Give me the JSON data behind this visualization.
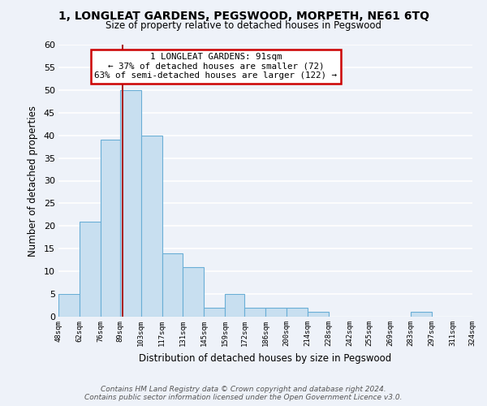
{
  "title": "1, LONGLEAT GARDENS, PEGSWOOD, MORPETH, NE61 6TQ",
  "subtitle": "Size of property relative to detached houses in Pegswood",
  "xlabel": "Distribution of detached houses by size in Pegswood",
  "ylabel": "Number of detached properties",
  "bar_color": "#c8dff0",
  "bar_edge_color": "#6aaed6",
  "bins": [
    48,
    62,
    76,
    89,
    103,
    117,
    131,
    145,
    159,
    172,
    186,
    200,
    214,
    228,
    242,
    255,
    269,
    283,
    297,
    311,
    324
  ],
  "counts": [
    5,
    21,
    39,
    50,
    40,
    14,
    11,
    2,
    5,
    2,
    2,
    2,
    1,
    0,
    0,
    0,
    0,
    1,
    0,
    0
  ],
  "tick_labels": [
    "48sqm",
    "62sqm",
    "76sqm",
    "89sqm",
    "103sqm",
    "117sqm",
    "131sqm",
    "145sqm",
    "159sqm",
    "172sqm",
    "186sqm",
    "200sqm",
    "214sqm",
    "228sqm",
    "242sqm",
    "255sqm",
    "269sqm",
    "283sqm",
    "297sqm",
    "311sqm",
    "324sqm"
  ],
  "ylim": [
    0,
    60
  ],
  "yticks": [
    0,
    5,
    10,
    15,
    20,
    25,
    30,
    35,
    40,
    45,
    50,
    55,
    60
  ],
  "annotation_title": "1 LONGLEAT GARDENS: 91sqm",
  "annotation_line1": "← 37% of detached houses are smaller (72)",
  "annotation_line2": "63% of semi-detached houses are larger (122) →",
  "annotation_box_color": "#ffffff",
  "annotation_box_edge_color": "#cc0000",
  "property_size": 91,
  "footer_line1": "Contains HM Land Registry data © Crown copyright and database right 2024.",
  "footer_line2": "Contains public sector information licensed under the Open Government Licence v3.0.",
  "bg_color": "#eef2f9",
  "grid_color": "#ffffff",
  "vline_color": "#aa2222"
}
